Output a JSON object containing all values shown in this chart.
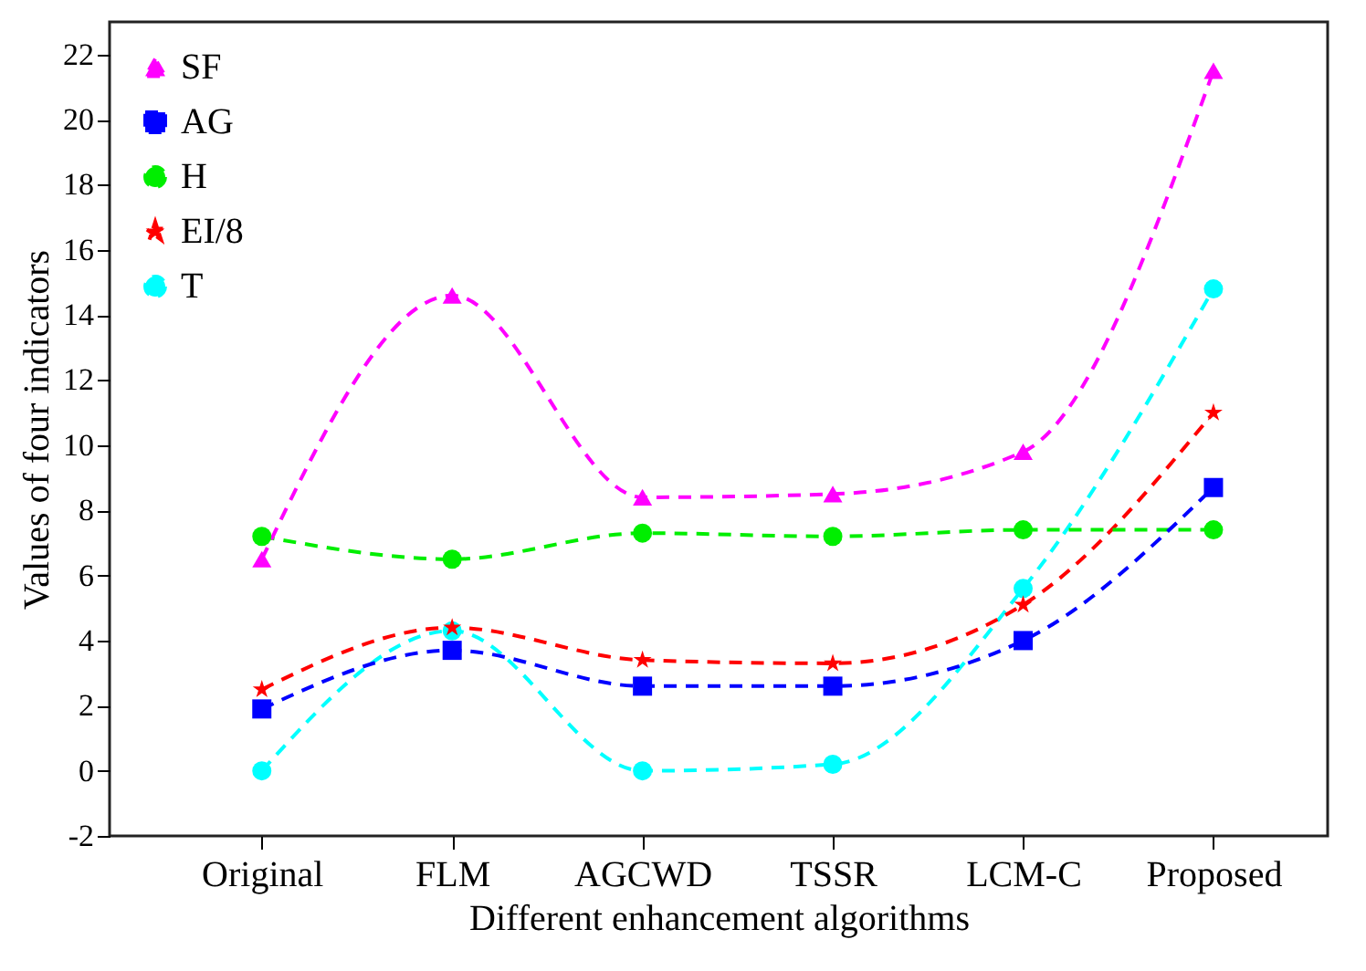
{
  "chart_data": {
    "type": "line",
    "xlabel": "Different enhancement algorithms",
    "ylabel": "Values of four indicators",
    "categories": [
      "Original",
      "FLM",
      "AGCWD",
      "TSSR",
      "LCM-C",
      "Proposed"
    ],
    "series": [
      {
        "name": "SF",
        "color": "#ff00ff",
        "marker": "triangle",
        "values": [
          6.5,
          14.6,
          8.4,
          8.5,
          9.8,
          21.5
        ]
      },
      {
        "name": "AG",
        "color": "#0000ff",
        "marker": "square",
        "values": [
          1.9,
          3.7,
          2.6,
          2.6,
          4.0,
          8.7
        ]
      },
      {
        "name": "H",
        "color": "#00ee00",
        "marker": "circle",
        "values": [
          7.2,
          6.5,
          7.3,
          7.2,
          7.4,
          7.4
        ]
      },
      {
        "name": "EI/8",
        "color": "#ff0000",
        "marker": "star",
        "values": [
          2.5,
          4.4,
          3.4,
          3.3,
          5.1,
          11.0
        ]
      },
      {
        "name": "T",
        "color": "#00ffff",
        "marker": "circle",
        "values": [
          0,
          4.3,
          0.0,
          0.2,
          5.6,
          14.8
        ]
      }
    ],
    "ylim": [
      -2,
      23
    ],
    "yticks": [
      -2,
      0,
      2,
      4,
      6,
      8,
      10,
      12,
      14,
      16,
      18,
      20,
      22
    ],
    "grid": false,
    "legend": "top left",
    "line_style": "dashed"
  }
}
